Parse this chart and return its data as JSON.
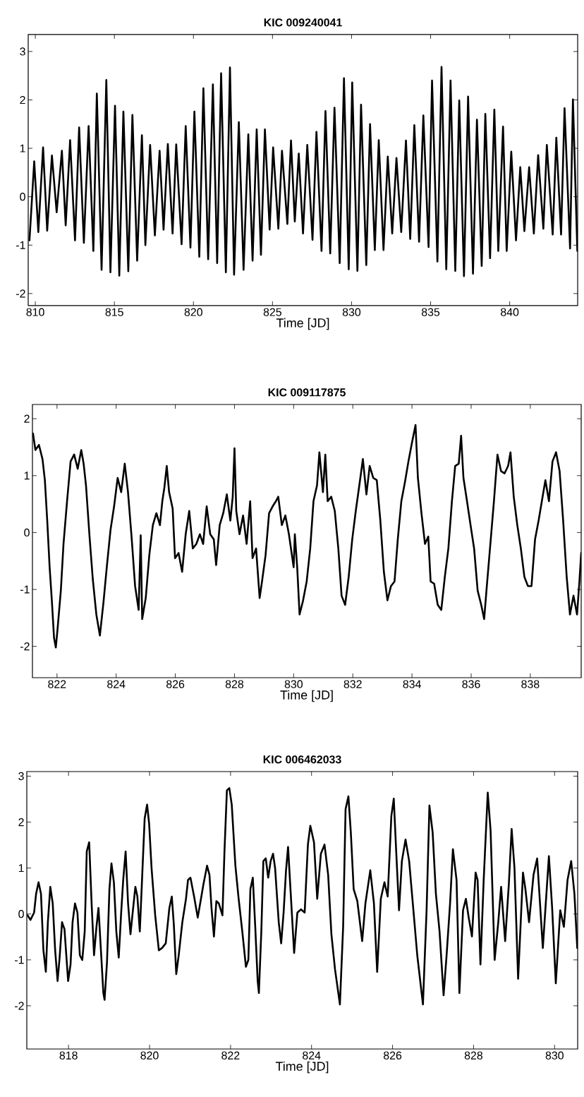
{
  "chart_data": [
    {
      "type": "line",
      "title": "KIC 009240041",
      "xlabel": "Time [JD]",
      "color": "#000000",
      "xlim": [
        809.55,
        844.3
      ],
      "ylim": [
        -2.25,
        3.35
      ],
      "xticks": [
        810,
        815,
        820,
        825,
        830,
        835,
        840
      ],
      "yticks": [
        -2,
        -1,
        0,
        1,
        2,
        3
      ],
      "x": [
        809.63,
        809.93,
        810.19,
        810.49,
        810.75,
        811.05,
        811.35,
        811.68,
        811.92,
        812.2,
        812.51,
        812.77,
        813.07,
        813.37,
        813.67,
        813.89,
        814.19,
        814.49,
        814.75,
        815.04,
        815.31,
        815.57,
        815.88,
        816.14,
        816.44,
        816.74,
        816.96,
        817.26,
        817.56,
        817.86,
        818.11,
        818.38,
        818.68,
        818.91,
        819.25,
        819.51,
        819.81,
        820.06,
        820.37,
        820.63,
        820.93,
        821.23,
        821.5,
        821.75,
        822.05,
        822.31,
        822.57,
        822.87,
        823.17,
        823.47,
        823.74,
        824.0,
        824.27,
        824.52,
        824.82,
        825.04,
        825.37,
        825.6,
        825.94,
        826.17,
        826.41,
        826.66,
        826.93,
        827.2,
        827.53,
        827.78,
        828.1,
        828.35,
        828.65,
        828.92,
        829.25,
        829.52,
        829.82,
        830.04,
        830.37,
        830.6,
        830.93,
        831.17,
        831.47,
        831.72,
        832.02,
        832.29,
        832.57,
        832.84,
        833.14,
        833.44,
        833.71,
        833.97,
        834.27,
        834.54,
        834.87,
        835.09,
        835.43,
        835.69,
        835.99,
        836.26,
        836.56,
        836.81,
        837.11,
        837.37,
        837.68,
        837.93,
        838.23,
        838.46,
        838.76,
        839.03,
        839.28,
        839.58,
        839.81,
        840.1,
        840.4,
        840.67,
        840.93,
        841.23,
        841.53,
        841.8,
        842.13,
        842.35,
        842.72,
        842.95,
        843.25,
        843.47,
        843.82,
        844.0,
        844.28
      ],
      "values": [
        -0.9,
        0.73,
        -0.73,
        1.02,
        -0.7,
        0.85,
        -0.32,
        0.95,
        -0.59,
        1.17,
        -0.9,
        1.43,
        -0.95,
        1.46,
        -1.12,
        2.13,
        -1.51,
        2.41,
        -1.56,
        1.88,
        -1.63,
        1.76,
        -1.54,
        1.69,
        -1.32,
        1.27,
        -1.0,
        1.07,
        -0.8,
        0.95,
        -0.68,
        1.09,
        -0.76,
        1.08,
        -0.98,
        1.46,
        -1.05,
        1.76,
        -1.24,
        2.24,
        -1.29,
        2.32,
        -1.37,
        2.55,
        -1.56,
        2.67,
        -1.61,
        1.54,
        -1.51,
        1.29,
        -1.32,
        1.39,
        -1.2,
        1.39,
        -0.68,
        1.02,
        -0.66,
        0.95,
        -0.56,
        1.16,
        -0.51,
        0.89,
        -0.76,
        1.07,
        -0.89,
        1.34,
        -1.12,
        1.77,
        -1.17,
        1.84,
        -1.37,
        2.45,
        -1.5,
        2.36,
        -1.53,
        1.9,
        -1.41,
        1.5,
        -1.1,
        1.17,
        -1.1,
        0.83,
        -0.76,
        0.8,
        -0.73,
        1.16,
        -0.87,
        1.48,
        -0.93,
        1.68,
        -1.04,
        2.4,
        -1.34,
        2.68,
        -1.5,
        2.4,
        -1.53,
        1.99,
        -1.64,
        2.07,
        -1.59,
        1.59,
        -1.43,
        1.71,
        -1.27,
        1.8,
        -1.12,
        1.45,
        -1.12,
        0.93,
        -0.9,
        0.61,
        -0.71,
        0.61,
        -0.76,
        0.86,
        -0.66,
        1.07,
        -0.78,
        1.22,
        -0.78,
        1.83,
        -1.07,
        2.01,
        -1.12
      ]
    },
    {
      "type": "line",
      "title": "KIC 009117875",
      "xlabel": "Time [JD]",
      "color": "#000000",
      "xlim": [
        821.17,
        839.72
      ],
      "ylim": [
        -2.55,
        2.25
      ],
      "xticks": [
        822,
        824,
        826,
        828,
        830,
        832,
        834,
        836,
        838
      ],
      "yticks": [
        -2,
        -1,
        0,
        1,
        2
      ],
      "x": [
        821.19,
        821.27,
        821.39,
        821.51,
        821.59,
        821.67,
        821.75,
        821.83,
        821.9,
        821.96,
        822.02,
        822.13,
        822.22,
        822.34,
        822.46,
        822.58,
        822.7,
        822.82,
        822.9,
        822.98,
        823.1,
        823.21,
        823.33,
        823.45,
        823.57,
        823.69,
        823.81,
        823.93,
        824.05,
        824.17,
        824.29,
        824.4,
        824.52,
        824.64,
        824.76,
        824.83,
        824.88,
        825.0,
        825.12,
        825.24,
        825.36,
        825.48,
        825.56,
        825.63,
        825.71,
        825.79,
        825.91,
        825.99,
        826.11,
        826.23,
        826.35,
        826.47,
        826.59,
        826.71,
        826.83,
        826.94,
        827.06,
        827.18,
        827.3,
        827.38,
        827.5,
        827.62,
        827.74,
        827.86,
        827.94,
        828.0,
        828.06,
        828.17,
        828.29,
        828.41,
        828.53,
        828.61,
        828.73,
        828.85,
        828.93,
        829.05,
        829.17,
        829.29,
        829.4,
        829.48,
        829.6,
        829.72,
        829.84,
        830.0,
        830.04,
        830.12,
        830.2,
        830.32,
        830.44,
        830.56,
        830.67,
        830.79,
        830.87,
        830.99,
        831.07,
        831.15,
        831.27,
        831.39,
        831.51,
        831.62,
        831.74,
        831.86,
        831.98,
        832.1,
        832.22,
        832.34,
        832.46,
        832.57,
        832.69,
        832.81,
        832.93,
        833.05,
        833.17,
        833.29,
        833.41,
        833.52,
        833.64,
        833.76,
        833.88,
        834.0,
        834.12,
        834.2,
        834.32,
        834.44,
        834.55,
        834.63,
        834.75,
        834.87,
        834.99,
        835.11,
        835.23,
        835.35,
        835.46,
        835.58,
        835.66,
        835.74,
        835.86,
        835.98,
        836.1,
        836.22,
        836.34,
        836.44,
        836.53,
        836.65,
        836.77,
        836.89,
        837.01,
        837.13,
        837.25,
        837.33,
        837.44,
        837.56,
        837.68,
        837.8,
        837.92,
        838.04,
        838.16,
        838.28,
        838.39,
        838.51,
        838.63,
        838.75,
        838.87,
        838.99,
        839.11,
        839.23,
        839.34,
        839.46,
        839.58,
        839.66,
        839.72
      ],
      "values": [
        1.74,
        1.45,
        1.54,
        1.29,
        0.92,
        0.21,
        -0.6,
        -1.23,
        -1.85,
        -2.02,
        -1.69,
        -1.02,
        -0.2,
        0.55,
        1.25,
        1.37,
        1.12,
        1.45,
        1.21,
        0.83,
        -0.07,
        -0.82,
        -1.44,
        -1.81,
        -1.23,
        -0.57,
        0.05,
        0.46,
        0.96,
        0.71,
        1.21,
        0.71,
        -0.07,
        -0.94,
        -1.36,
        -0.05,
        -1.52,
        -1.15,
        -0.4,
        0.13,
        0.34,
        0.13,
        0.55,
        0.79,
        1.17,
        0.71,
        0.42,
        -0.45,
        -0.36,
        -0.69,
        -0.03,
        0.38,
        -0.28,
        -0.2,
        -0.03,
        -0.2,
        0.46,
        -0.03,
        -0.12,
        -0.57,
        0.13,
        0.34,
        0.67,
        0.21,
        0.63,
        1.48,
        0.38,
        -0.03,
        0.3,
        -0.2,
        0.55,
        -0.45,
        -0.28,
        -1.15,
        -0.86,
        -0.4,
        0.34,
        0.46,
        0.55,
        0.63,
        0.13,
        0.3,
        -0.03,
        -0.61,
        -0.03,
        -0.61,
        -1.44,
        -1.19,
        -0.86,
        -0.28,
        0.55,
        0.83,
        1.41,
        0.71,
        1.37,
        0.55,
        0.63,
        0.38,
        -0.28,
        -1.11,
        -1.27,
        -0.78,
        -0.12,
        0.38,
        0.83,
        1.29,
        0.67,
        1.17,
        0.96,
        0.92,
        0.21,
        -0.69,
        -1.19,
        -0.94,
        -0.86,
        -0.12,
        0.55,
        0.88,
        1.25,
        1.58,
        1.89,
        0.96,
        0.34,
        -0.2,
        -0.07,
        -0.86,
        -0.9,
        -1.27,
        -1.36,
        -0.78,
        -0.28,
        0.55,
        1.17,
        1.21,
        1.7,
        0.96,
        0.55,
        0.13,
        -0.28,
        -1.02,
        -1.27,
        -1.52,
        -0.94,
        -0.2,
        0.55,
        1.37,
        1.08,
        1.04,
        1.17,
        1.41,
        0.63,
        0.13,
        -0.28,
        -0.78,
        -0.94,
        -0.94,
        -0.12,
        0.21,
        0.55,
        0.92,
        0.55,
        1.25,
        1.41,
        1.08,
        0.21,
        -0.78,
        -1.44,
        -1.11,
        -1.44,
        -0.86,
        -0.36
      ]
    },
    {
      "type": "line",
      "title": "KIC 006462033",
      "xlabel": "Time [JD]",
      "color": "#000000",
      "xlim": [
        816.97,
        830.57
      ],
      "ylim": [
        -2.94,
        3.1
      ],
      "xticks": [
        818,
        820,
        822,
        824,
        826,
        828,
        830
      ],
      "yticks": [
        -2,
        -1,
        0,
        1,
        2,
        3
      ],
      "x": [
        816.99,
        817.06,
        817.15,
        817.2,
        817.26,
        817.32,
        817.38,
        817.44,
        817.49,
        817.55,
        817.61,
        817.67,
        817.73,
        817.78,
        817.84,
        817.9,
        817.99,
        818.05,
        818.1,
        818.16,
        818.22,
        818.28,
        818.34,
        818.4,
        818.45,
        818.51,
        818.57,
        818.63,
        818.69,
        818.74,
        818.8,
        818.86,
        818.89,
        818.95,
        819.01,
        819.06,
        819.12,
        819.18,
        819.24,
        819.3,
        819.35,
        819.41,
        819.47,
        819.53,
        819.59,
        819.65,
        819.7,
        819.76,
        819.82,
        819.88,
        819.94,
        819.99,
        820.05,
        820.14,
        820.23,
        820.31,
        820.4,
        820.49,
        820.55,
        820.6,
        820.66,
        820.72,
        820.81,
        820.9,
        820.95,
        821.01,
        821.1,
        821.19,
        821.27,
        821.33,
        821.42,
        821.48,
        821.53,
        821.59,
        821.65,
        821.71,
        821.8,
        821.85,
        821.91,
        821.97,
        822.03,
        822.12,
        822.2,
        822.29,
        822.38,
        822.44,
        822.49,
        822.55,
        822.61,
        822.67,
        822.7,
        822.76,
        822.81,
        822.87,
        822.93,
        822.99,
        823.05,
        823.1,
        823.19,
        823.25,
        823.31,
        823.37,
        823.42,
        823.57,
        823.65,
        823.74,
        823.83,
        823.91,
        823.97,
        824.06,
        824.14,
        824.23,
        824.32,
        824.41,
        824.49,
        824.58,
        824.7,
        824.78,
        824.84,
        824.91,
        824.97,
        825.04,
        825.13,
        825.25,
        825.33,
        825.45,
        825.54,
        825.62,
        825.71,
        825.8,
        825.88,
        825.97,
        826.03,
        826.09,
        826.16,
        826.23,
        826.32,
        826.41,
        826.49,
        826.61,
        826.75,
        826.84,
        826.91,
        826.99,
        827.07,
        827.16,
        827.26,
        827.33,
        827.42,
        827.49,
        827.58,
        827.65,
        827.74,
        827.81,
        827.88,
        827.96,
        828.05,
        828.1,
        828.17,
        828.25,
        828.35,
        828.42,
        828.52,
        828.61,
        828.68,
        828.78,
        828.87,
        828.94,
        829.01,
        829.1,
        829.22,
        829.28,
        829.37,
        829.48,
        829.57,
        829.71,
        829.86,
        829.94,
        830.03,
        830.14,
        830.23,
        830.32,
        830.41,
        830.49,
        830.56
      ],
      "values": [
        -0.03,
        -0.13,
        0.03,
        0.44,
        0.69,
        0.44,
        -0.79,
        -1.26,
        -0.18,
        0.59,
        0.23,
        -0.79,
        -1.46,
        -0.95,
        -0.18,
        -0.33,
        -1.46,
        -1.1,
        -0.18,
        0.23,
        0.03,
        -0.9,
        -1.0,
        -0.38,
        1.36,
        1.56,
        0.23,
        -0.9,
        -0.28,
        0.13,
        -0.79,
        -1.72,
        -1.87,
        -1.05,
        0.54,
        1.1,
        0.69,
        -0.38,
        -0.95,
        0.03,
        0.74,
        1.36,
        0.23,
        -0.44,
        0.08,
        0.59,
        0.38,
        -0.38,
        0.85,
        2.08,
        2.38,
        1.97,
        1.0,
        -0.03,
        -0.79,
        -0.74,
        -0.64,
        0.13,
        0.38,
        -0.23,
        -1.31,
        -0.9,
        -0.18,
        0.33,
        0.74,
        0.79,
        0.38,
        -0.08,
        0.33,
        0.64,
        1.05,
        0.85,
        0.13,
        -0.49,
        0.28,
        0.23,
        -0.03,
        1.36,
        2.69,
        2.74,
        2.38,
        1.05,
        0.33,
        -0.38,
        -1.15,
        -1.0,
        0.54,
        0.79,
        -0.28,
        -1.46,
        -1.72,
        -0.38,
        1.15,
        1.21,
        0.79,
        1.15,
        1.31,
        1.0,
        -0.18,
        -0.64,
        0.03,
        0.95,
        1.46,
        -0.85,
        0.03,
        0.1,
        0.03,
        1.51,
        1.92,
        1.56,
        0.33,
        1.31,
        1.51,
        0.85,
        -0.44,
        -1.21,
        -1.97,
        -0.28,
        2.28,
        2.56,
        1.77,
        0.54,
        0.28,
        -0.59,
        0.23,
        0.95,
        0.23,
        -1.26,
        0.33,
        0.69,
        0.38,
        2.13,
        2.51,
        1.36,
        0.08,
        1.15,
        1.62,
        1.15,
        0.33,
        -0.9,
        -1.97,
        0.08,
        2.36,
        1.77,
        0.44,
        -0.38,
        -1.77,
        -0.95,
        0.23,
        1.41,
        0.74,
        -1.72,
        0.08,
        0.33,
        -0.08,
        -0.49,
        0.9,
        0.74,
        -1.1,
        0.74,
        2.64,
        1.82,
        -1.0,
        -0.18,
        0.59,
        -0.59,
        0.64,
        1.85,
        1.0,
        -1.41,
        0.9,
        0.54,
        -0.18,
        0.85,
        1.21,
        -0.74,
        1.26,
        0.13,
        -1.51,
        0.08,
        -0.28,
        0.74,
        1.15,
        0.44,
        -0.74
      ]
    }
  ]
}
